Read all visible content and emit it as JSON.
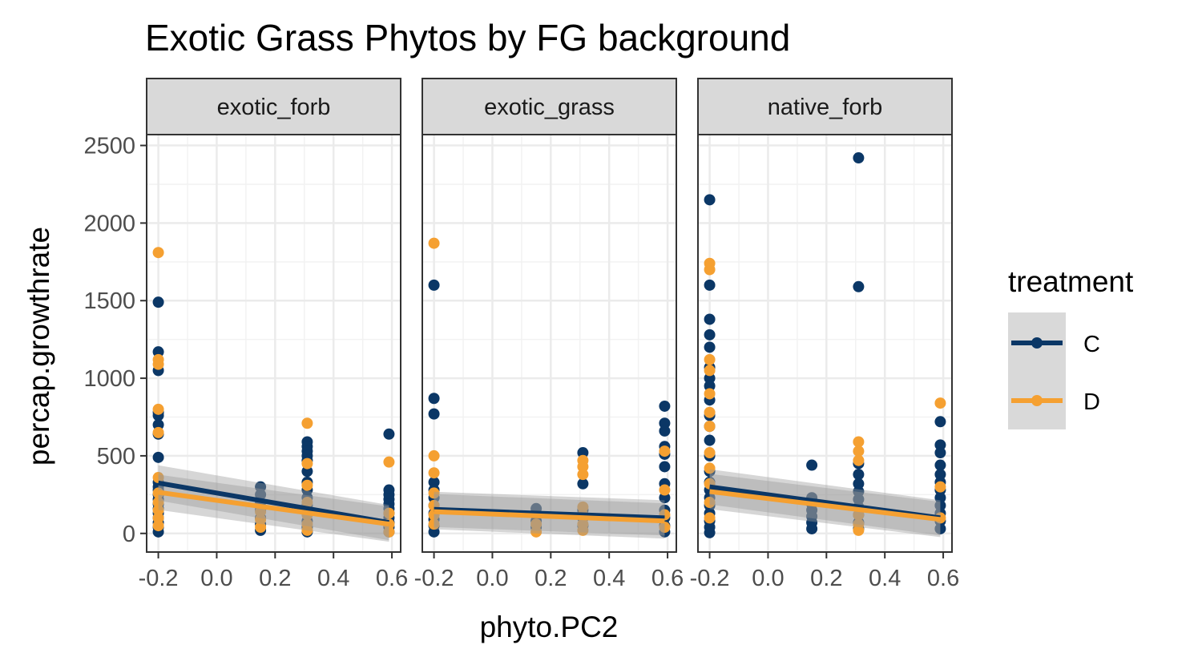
{
  "chart_data": {
    "type": "scatter",
    "title": "Exotic Grass Phytos by FG background",
    "xlabel": "phyto.PC2",
    "ylabel": "percap.growthrate",
    "xlim": [
      -0.24,
      0.63
    ],
    "ylim": [
      -120,
      2570
    ],
    "x_ticks": [
      -0.2,
      0.0,
      0.2,
      0.4,
      0.6
    ],
    "x_tick_labels": [
      "-0.2",
      "0.0",
      "0.2",
      "0.4",
      "0.6"
    ],
    "y_ticks": [
      0,
      500,
      1000,
      1500,
      2000,
      2500
    ],
    "y_tick_labels": [
      "0",
      "500",
      "1000",
      "1500",
      "2000",
      "2500"
    ],
    "grid": true,
    "legend": {
      "title": "treatment",
      "position": "right",
      "items": [
        {
          "label": "C",
          "color": "#0b3766"
        },
        {
          "label": "D",
          "color": "#f5a031"
        }
      ]
    },
    "colors": {
      "C": "#0b3766",
      "D": "#f5a031",
      "ribbon": "#999999",
      "panel_strip": "#d9d9d9"
    },
    "panels": [
      {
        "label": "exotic_forb",
        "series": [
          {
            "name": "C",
            "points": [
              [
                -0.2,
                1490
              ],
              [
                -0.2,
                1170
              ],
              [
                -0.2,
                1050
              ],
              [
                -0.2,
                780
              ],
              [
                -0.2,
                760
              ],
              [
                -0.2,
                700
              ],
              [
                -0.2,
                640
              ],
              [
                -0.2,
                490
              ],
              [
                -0.2,
                330
              ],
              [
                -0.2,
                300
              ],
              [
                -0.2,
                280
              ],
              [
                -0.2,
                250
              ],
              [
                -0.2,
                220
              ],
              [
                -0.2,
                190
              ],
              [
                -0.2,
                160
              ],
              [
                -0.2,
                130
              ],
              [
                -0.2,
                100
              ],
              [
                -0.2,
                70
              ],
              [
                -0.2,
                40
              ],
              [
                -0.2,
                10
              ],
              [
                0.15,
                300
              ],
              [
                0.15,
                250
              ],
              [
                0.15,
                200
              ],
              [
                0.15,
                150
              ],
              [
                0.15,
                100
              ],
              [
                0.15,
                60
              ],
              [
                0.15,
                20
              ],
              [
                0.31,
                590
              ],
              [
                0.31,
                560
              ],
              [
                0.31,
                530
              ],
              [
                0.31,
                500
              ],
              [
                0.31,
                470
              ],
              [
                0.31,
                400
              ],
              [
                0.31,
                330
              ],
              [
                0.31,
                280
              ],
              [
                0.31,
                230
              ],
              [
                0.31,
                180
              ],
              [
                0.31,
                130
              ],
              [
                0.31,
                80
              ],
              [
                0.31,
                40
              ],
              [
                0.31,
                10
              ],
              [
                0.59,
                640
              ],
              [
                0.59,
                280
              ],
              [
                0.59,
                250
              ],
              [
                0.59,
                220
              ],
              [
                0.59,
                190
              ],
              [
                0.59,
                160
              ],
              [
                0.59,
                130
              ],
              [
                0.59,
                100
              ],
              [
                0.59,
                70
              ],
              [
                0.59,
                40
              ],
              [
                0.59,
                10
              ]
            ],
            "fit": {
              "x": [
                -0.2,
                0.59
              ],
              "y": [
                325,
                70
              ]
            }
          },
          {
            "name": "D",
            "points": [
              [
                -0.2,
                1810
              ],
              [
                -0.2,
                1120
              ],
              [
                -0.2,
                1090
              ],
              [
                -0.2,
                800
              ],
              [
                -0.2,
                650
              ],
              [
                -0.2,
                360
              ],
              [
                -0.2,
                260
              ],
              [
                -0.2,
                200
              ],
              [
                -0.2,
                150
              ],
              [
                -0.2,
                100
              ],
              [
                -0.2,
                50
              ],
              [
                0.15,
                140
              ],
              [
                0.15,
                90
              ],
              [
                0.15,
                40
              ],
              [
                0.31,
                710
              ],
              [
                0.31,
                450
              ],
              [
                0.31,
                310
              ],
              [
                0.31,
                200
              ],
              [
                0.31,
                120
              ],
              [
                0.31,
                60
              ],
              [
                0.31,
                20
              ],
              [
                0.59,
                460
              ],
              [
                0.59,
                130
              ],
              [
                0.59,
                60
              ],
              [
                0.59,
                10
              ]
            ],
            "fit": {
              "x": [
                -0.2,
                0.59
              ],
              "y": [
                265,
                60
              ]
            }
          }
        ]
      },
      {
        "label": "exotic_grass",
        "series": [
          {
            "name": "C",
            "points": [
              [
                -0.2,
                1600
              ],
              [
                -0.2,
                870
              ],
              [
                -0.2,
                770
              ],
              [
                -0.2,
                330
              ],
              [
                -0.2,
                280
              ],
              [
                -0.2,
                230
              ],
              [
                -0.2,
                180
              ],
              [
                -0.2,
                130
              ],
              [
                -0.2,
                90
              ],
              [
                -0.2,
                50
              ],
              [
                -0.2,
                10
              ],
              [
                0.15,
                160
              ],
              [
                0.15,
                120
              ],
              [
                0.15,
                80
              ],
              [
                0.15,
                40
              ],
              [
                0.31,
                520
              ],
              [
                0.31,
                320
              ],
              [
                0.31,
                150
              ],
              [
                0.31,
                100
              ],
              [
                0.31,
                50
              ],
              [
                0.59,
                820
              ],
              [
                0.59,
                710
              ],
              [
                0.59,
                660
              ],
              [
                0.59,
                560
              ],
              [
                0.59,
                510
              ],
              [
                0.59,
                430
              ],
              [
                0.59,
                320
              ],
              [
                0.59,
                230
              ],
              [
                0.59,
                150
              ],
              [
                0.59,
                100
              ],
              [
                0.59,
                50
              ],
              [
                0.59,
                10
              ]
            ],
            "fit": {
              "x": [
                -0.2,
                0.59
              ],
              "y": [
                155,
                100
              ]
            }
          },
          {
            "name": "D",
            "points": [
              [
                -0.2,
                1870
              ],
              [
                -0.2,
                500
              ],
              [
                -0.2,
                390
              ],
              [
                -0.2,
                260
              ],
              [
                -0.2,
                180
              ],
              [
                -0.2,
                120
              ],
              [
                -0.2,
                60
              ],
              [
                0.15,
                60
              ],
              [
                0.15,
                10
              ],
              [
                0.31,
                470
              ],
              [
                0.31,
                430
              ],
              [
                0.31,
                380
              ],
              [
                0.31,
                170
              ],
              [
                0.31,
                120
              ],
              [
                0.31,
                60
              ],
              [
                0.31,
                20
              ],
              [
                0.59,
                530
              ],
              [
                0.59,
                280
              ],
              [
                0.59,
                120
              ],
              [
                0.59,
                40
              ]
            ],
            "fit": {
              "x": [
                -0.2,
                0.59
              ],
              "y": [
                140,
                80
              ]
            }
          }
        ]
      },
      {
        "label": "native_forb",
        "series": [
          {
            "name": "C",
            "points": [
              [
                -0.2,
                2150
              ],
              [
                -0.2,
                1600
              ],
              [
                -0.2,
                1380
              ],
              [
                -0.2,
                1280
              ],
              [
                -0.2,
                1200
              ],
              [
                -0.2,
                1070
              ],
              [
                -0.2,
                1000
              ],
              [
                -0.2,
                950
              ],
              [
                -0.2,
                860
              ],
              [
                -0.2,
                760
              ],
              [
                -0.2,
                690
              ],
              [
                -0.2,
                600
              ],
              [
                -0.2,
                500
              ],
              [
                -0.2,
                400
              ],
              [
                -0.2,
                330
              ],
              [
                -0.2,
                280
              ],
              [
                -0.2,
                230
              ],
              [
                -0.2,
                180
              ],
              [
                -0.2,
                130
              ],
              [
                -0.2,
                80
              ],
              [
                -0.2,
                40
              ],
              [
                -0.2,
                5
              ],
              [
                0.15,
                440
              ],
              [
                0.15,
                230
              ],
              [
                0.15,
                190
              ],
              [
                0.15,
                150
              ],
              [
                0.15,
                110
              ],
              [
                0.15,
                70
              ],
              [
                0.15,
                30
              ],
              [
                0.31,
                2420
              ],
              [
                0.31,
                1590
              ],
              [
                0.31,
                450
              ],
              [
                0.31,
                380
              ],
              [
                0.31,
                320
              ],
              [
                0.31,
                270
              ],
              [
                0.31,
                220
              ],
              [
                0.31,
                170
              ],
              [
                0.31,
                120
              ],
              [
                0.31,
                70
              ],
              [
                0.31,
                30
              ],
              [
                0.59,
                720
              ],
              [
                0.59,
                570
              ],
              [
                0.59,
                520
              ],
              [
                0.59,
                440
              ],
              [
                0.59,
                380
              ],
              [
                0.59,
                330
              ],
              [
                0.59,
                280
              ],
              [
                0.59,
                230
              ],
              [
                0.59,
                180
              ],
              [
                0.59,
                130
              ],
              [
                0.59,
                80
              ],
              [
                0.59,
                30
              ]
            ],
            "fit": {
              "x": [
                -0.2,
                0.59
              ],
              "y": [
                300,
                100
              ]
            }
          },
          {
            "name": "D",
            "points": [
              [
                -0.2,
                1740
              ],
              [
                -0.2,
                1700
              ],
              [
                -0.2,
                1120
              ],
              [
                -0.2,
                1050
              ],
              [
                -0.2,
                900
              ],
              [
                -0.2,
                780
              ],
              [
                -0.2,
                690
              ],
              [
                -0.2,
                520
              ],
              [
                -0.2,
                420
              ],
              [
                -0.2,
                320
              ],
              [
                -0.2,
                200
              ],
              [
                -0.2,
                100
              ],
              [
                0.31,
                590
              ],
              [
                0.31,
                530
              ],
              [
                0.31,
                470
              ],
              [
                0.31,
                120
              ],
              [
                0.31,
                60
              ],
              [
                0.31,
                20
              ],
              [
                0.59,
                840
              ],
              [
                0.59,
                300
              ],
              [
                0.59,
                100
              ]
            ],
            "fit": {
              "x": [
                -0.2,
                0.59
              ],
              "y": [
                270,
                90
              ]
            }
          }
        ]
      }
    ]
  }
}
